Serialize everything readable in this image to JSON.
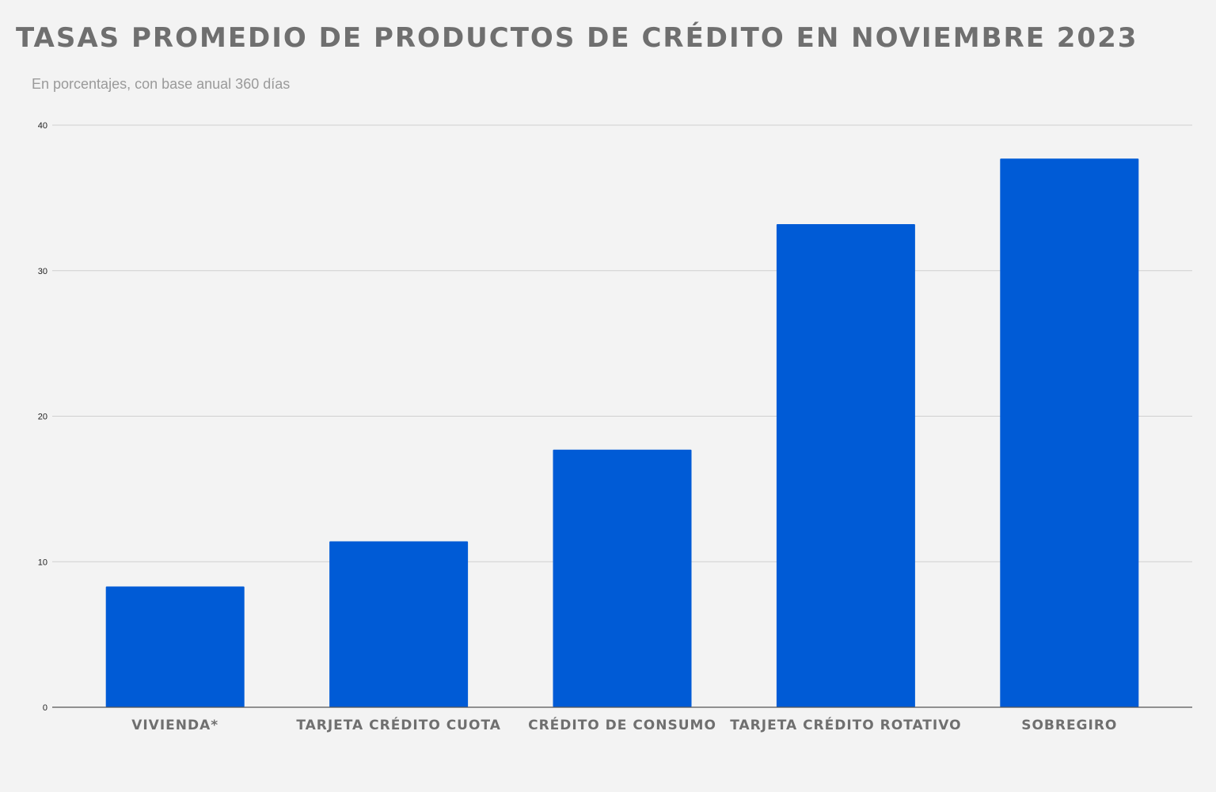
{
  "chart_data": {
    "type": "bar",
    "title": "TASAS PROMEDIO DE PRODUCTOS DE CRÉDITO EN NOVIEMBRE 2023",
    "subtitle": "En porcentajes, con base anual 360 días",
    "categories": [
      "VIVIENDA*",
      "TARJETA CRÉDITO CUOTA",
      "CRÉDITO DE CONSUMO",
      "TARJETA CRÉDITO ROTATIVO",
      "SOBREGIRO"
    ],
    "values": [
      8.3,
      11.4,
      17.7,
      33.2,
      37.7
    ],
    "xlabel": "",
    "ylabel": "",
    "ylim": [
      0,
      40
    ],
    "yticks": [
      0,
      10,
      20,
      30,
      40
    ],
    "grid": true,
    "bar_color": "#005bd6"
  }
}
